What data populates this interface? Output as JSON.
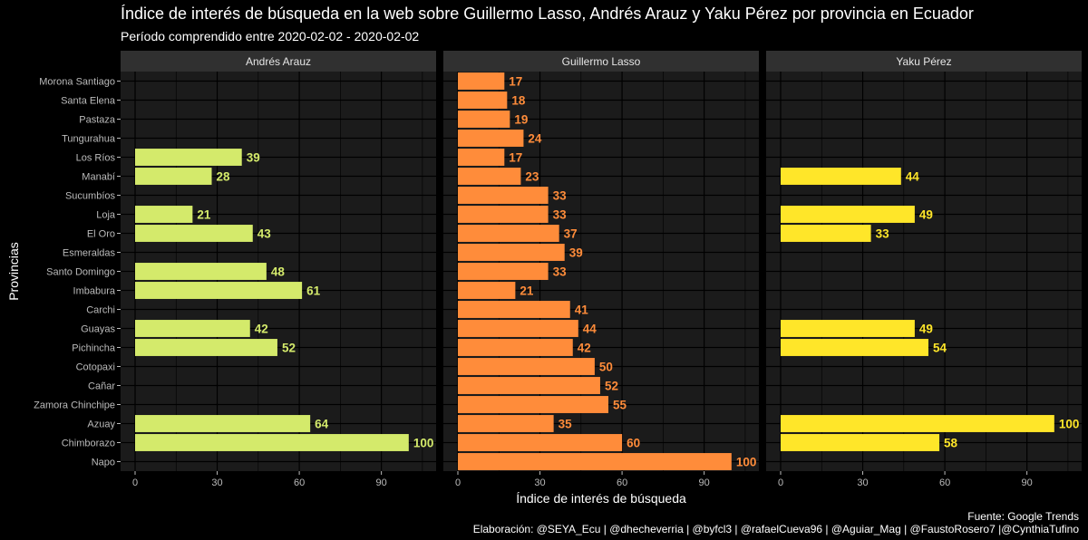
{
  "title": "Índice de interés de búsqueda en la web sobre Guillermo Lasso, Andrés Arauz y Yaku Pérez por provincia en Ecuador",
  "subtitle": "Período comprendido entre 2020-02-02 - 2020-02-02",
  "caption_source": "Fuente: Google Trends",
  "caption_credits": "Elaboración: @SEYA_Ecu | @dhecheverria | @byfcl3 | @rafaelCueva96 | @Aguiar_Mag | @FaustoRosero7 |@CynthiaTufino",
  "colors": {
    "background": "#000000",
    "panel": "#1b1b1b",
    "strip": "#303030",
    "grid": "#000000"
  },
  "chart_data": {
    "type": "bar",
    "orientation": "horizontal",
    "facets": [
      "Andrés Arauz",
      "Guillermo Lasso",
      "Yaku Pérez"
    ],
    "xlabel": "Índice de interés de búsqueda",
    "ylabel": "Provincias",
    "xlim": [
      0,
      110
    ],
    "xticks": [
      0,
      30,
      60,
      90
    ],
    "grid": true,
    "legend": "none",
    "categories": [
      "Morona Santiago",
      "Santa Elena",
      "Pastaza",
      "Tungurahua",
      "Los Ríos",
      "Manabí",
      "Sucumbíos",
      "Loja",
      "El Oro",
      "Esmeraldas",
      "Santo Domingo",
      "Imbabura",
      "Carchi",
      "Guayas",
      "Pichincha",
      "Cotopaxi",
      "Cañar",
      "Zamora Chinchipe",
      "Azuay",
      "Chimborazo",
      "Napo"
    ],
    "series": [
      {
        "name": "Andrés Arauz",
        "color": "#d4ea6b",
        "values": [
          null,
          null,
          null,
          null,
          39,
          28,
          null,
          21,
          43,
          null,
          48,
          61,
          null,
          42,
          52,
          null,
          null,
          null,
          64,
          100,
          null
        ]
      },
      {
        "name": "Guillermo Lasso",
        "color": "#ff8c3a",
        "values": [
          17,
          18,
          19,
          24,
          17,
          23,
          33,
          33,
          37,
          39,
          33,
          21,
          41,
          44,
          42,
          50,
          52,
          55,
          35,
          60,
          100
        ]
      },
      {
        "name": "Yaku Pérez",
        "color": "#ffe629",
        "values": [
          null,
          null,
          null,
          null,
          null,
          44,
          null,
          49,
          33,
          null,
          null,
          null,
          null,
          49,
          54,
          null,
          null,
          null,
          100,
          58,
          null
        ]
      }
    ]
  }
}
